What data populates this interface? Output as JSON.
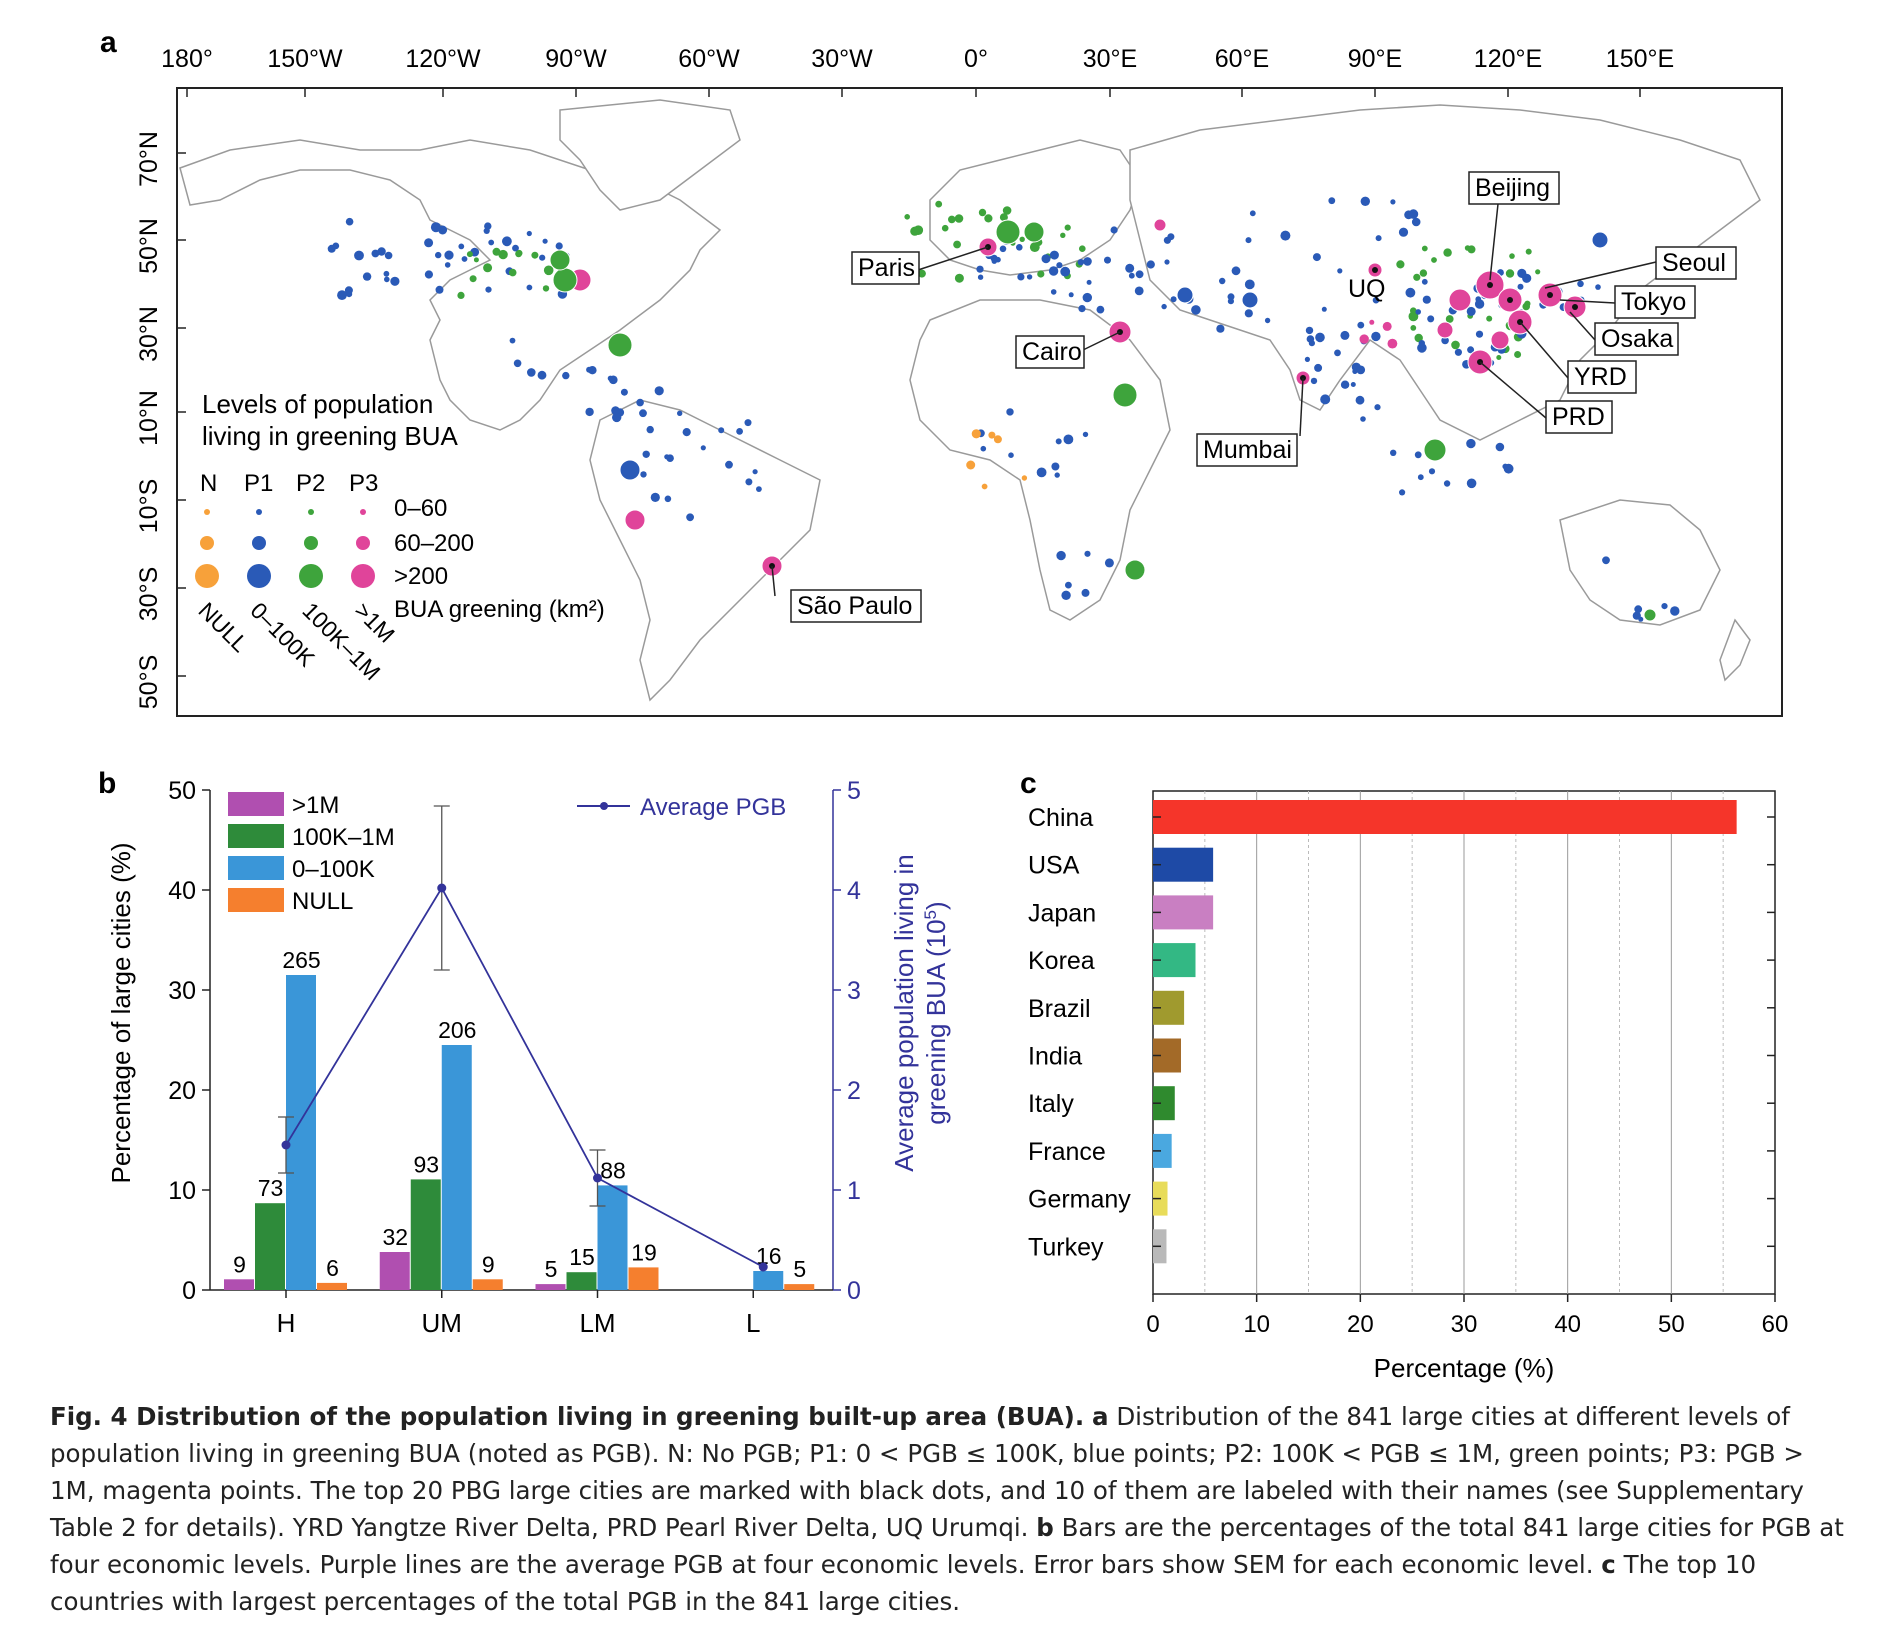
{
  "panel_letters": {
    "a": "a",
    "b": "b",
    "c": "c"
  },
  "colors": {
    "null": "#f7a13a",
    "p1": "#2a5ab7",
    "p2": "#3ea43c",
    "p3": "#e0449a",
    "bar_gt1m": "#b04fb0",
    "bar_100k1m": "#2e8b3a",
    "bar_0_100k": "#3a96d8",
    "bar_null": "#f57f2e",
    "line": "#33339a",
    "land_line": "#9a9a9a"
  },
  "map": {
    "lon_labels": [
      "180°",
      "150°W",
      "120°W",
      "90°W",
      "60°W",
      "30°W",
      "0°",
      "30°E",
      "60°E",
      "90°E",
      "120°E",
      "150°E"
    ],
    "lat_labels": [
      "70°N",
      "50°N",
      "30°N",
      "10°N",
      "10°S",
      "30°S",
      "50°S"
    ],
    "legend": {
      "title_line1": "Levels of population",
      "title_line2": "living in greening BUA",
      "col_headers": [
        "N",
        "P1",
        "P2",
        "P3"
      ],
      "size_labels": [
        "0–60",
        "60–200",
        ">200"
      ],
      "size_axis_label": "BUA greening (km²)",
      "pop_labels": [
        "NULL",
        "0–100K",
        "100K–1M",
        ">1M"
      ]
    },
    "city_labels": [
      "Beijing",
      "Seoul",
      "Tokyo",
      "Osaka",
      "YRD",
      "PRD",
      "Paris",
      "UQ",
      "Cairo",
      "Mumbai",
      "São Paulo"
    ]
  },
  "chart_data": [
    {
      "panel": "b",
      "type": "bar",
      "categories": [
        "H",
        "UM",
        "LM",
        "L"
      ],
      "series": [
        {
          "name": ">1M",
          "values": [
            1.07,
            3.8,
            0.59,
            0.0
          ],
          "labels": [
            "9",
            "32",
            "5",
            ""
          ]
        },
        {
          "name": "100K–1M",
          "values": [
            8.68,
            11.06,
            1.78,
            0.0
          ],
          "labels": [
            "73",
            "93",
            "15",
            ""
          ]
        },
        {
          "name": "0–100K",
          "values": [
            31.5,
            24.5,
            10.46,
            1.9
          ],
          "labels": [
            "265",
            "206",
            "88",
            "16"
          ]
        },
        {
          "name": "NULL",
          "values": [
            0.71,
            1.07,
            2.26,
            0.59
          ],
          "labels": [
            "6",
            "9",
            "19",
            "5"
          ]
        }
      ],
      "line": {
        "name": "Average PGB",
        "values": [
          1.45,
          4.02,
          1.12,
          0.23
        ],
        "err": [
          0.28,
          0.82,
          0.28,
          0.0
        ]
      },
      "ylabel": "Percentage of large cities (%)",
      "y2label_line1": "Average population living in",
      "y2label_line2": "greening BUA (10",
      "y2label_sup": "5",
      "y2label_end": ")",
      "ylim": [
        0,
        50
      ],
      "y2lim": [
        0,
        5
      ],
      "yticks": [
        "0",
        "10",
        "20",
        "30",
        "40",
        "50"
      ],
      "y2ticks": [
        "0",
        "1",
        "2",
        "3",
        "4",
        "5"
      ]
    },
    {
      "panel": "c",
      "type": "bar",
      "orientation": "horizontal",
      "categories": [
        "China",
        "USA",
        "Japan",
        "Korea",
        "Brazil",
        "India",
        "Italy",
        "France",
        "Germany",
        "Turkey"
      ],
      "values": [
        56.3,
        5.8,
        5.8,
        4.1,
        3.0,
        2.7,
        2.1,
        1.8,
        1.4,
        1.3
      ],
      "bar_colors": [
        "#f5352a",
        "#1e4aa6",
        "#c97fc2",
        "#33b884",
        "#a09a2e",
        "#a36a28",
        "#2f8a2e",
        "#4aa8e0",
        "#e8dc5a",
        "#b9b9b9"
      ],
      "xlabel": "Percentage (%)",
      "xlim": [
        0,
        60
      ],
      "xticks": [
        "0",
        "10",
        "20",
        "30",
        "40",
        "50",
        "60"
      ]
    }
  ],
  "caption": {
    "title": "Fig. 4 Distribution of the population living in greening built-up area (BUA).",
    "a_letter": "a",
    "a_text": " Distribution of the 841 large cities at different levels of population living in greening BUA (noted as PGB). N: No PGB; P1: 0 < PGB ≤ 100K, blue points; P2: 100K < PGB ≤ 1M, green points; P3: PGB > 1M, magenta points. The top 20 PBG large cities are marked with black dots, and 10 of them are labeled with their names (see Supplementary Table 2 for details). YRD Yangtze River Delta, PRD Pearl River Delta, UQ Urumqi. ",
    "b_letter": "b",
    "b_text": " Bars are the percentages of the total 841 large cities for PGB at four economic levels. Purple lines are the average PGB at four economic levels. Error bars show SEM for each economic level. ",
    "c_letter": "c",
    "c_text": " The top 10 countries with largest percentages of the total PGB in the 841 large cities."
  }
}
